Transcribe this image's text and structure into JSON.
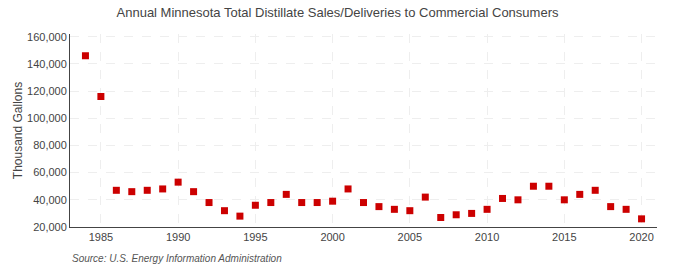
{
  "chart_data": {
    "type": "scatter",
    "title": "Annual Minnesota Total Distillate Sales/Deliveries to Commercial Consumers",
    "ylabel": "Thousand Gallons",
    "source": "Source: U.S. Energy Information Administration",
    "color": "#cc0000",
    "marker": "square",
    "grid": true,
    "xlim": [
      1983,
      2021
    ],
    "ylim": [
      20000,
      162000
    ],
    "xticks": [
      1985,
      1990,
      1995,
      2000,
      2005,
      2010,
      2015,
      2020
    ],
    "yticks": [
      {
        "value": 20000,
        "label": "20,000"
      },
      {
        "value": 40000,
        "label": "40,000"
      },
      {
        "value": 60000,
        "label": "60,000"
      },
      {
        "value": 80000,
        "label": "80,000"
      },
      {
        "value": 100000,
        "label": "100,000"
      },
      {
        "value": 120000,
        "label": "120,000"
      },
      {
        "value": 140000,
        "label": "140,000"
      },
      {
        "value": 160000,
        "label": "160,000"
      }
    ],
    "x": [
      1984,
      1985,
      1986,
      1987,
      1988,
      1989,
      1990,
      1991,
      1992,
      1993,
      1994,
      1995,
      1996,
      1997,
      1998,
      1999,
      2000,
      2001,
      2002,
      2003,
      2004,
      2005,
      2006,
      2007,
      2008,
      2009,
      2010,
      2011,
      2012,
      2013,
      2014,
      2015,
      2016,
      2017,
      2018,
      2019,
      2020
    ],
    "values": [
      146000,
      116000,
      47000,
      46000,
      47000,
      48000,
      53000,
      46000,
      38000,
      32000,
      28000,
      36000,
      38000,
      44000,
      38000,
      38000,
      39000,
      48000,
      38000,
      35000,
      33000,
      32000,
      42000,
      27000,
      29000,
      30000,
      33000,
      41000,
      40000,
      50000,
      50000,
      40000,
      44000,
      47000,
      35000,
      33000,
      26000
    ]
  }
}
